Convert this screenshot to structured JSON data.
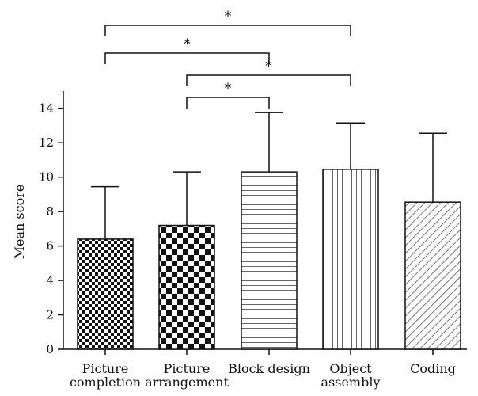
{
  "chart_data": {
    "type": "bar",
    "categories": [
      [
        "Picture",
        "completion"
      ],
      [
        "Picture",
        "arrangement"
      ],
      [
        "Block design"
      ],
      [
        "Object",
        "assembly"
      ],
      [
        "Coding"
      ]
    ],
    "values": [
      6.4,
      7.2,
      10.3,
      10.45,
      8.55
    ],
    "error_upper": [
      9.45,
      10.3,
      13.75,
      13.15,
      12.55
    ],
    "patterns": [
      "small-checker",
      "large-checker",
      "horizontal-lines",
      "vertical-lines",
      "diagonal-lines"
    ],
    "xlabel": "",
    "ylabel": "Mean score",
    "ylim": [
      0,
      15
    ],
    "yticks": [
      "0",
      "2",
      "4",
      "6",
      "8",
      "10",
      "12",
      "14"
    ],
    "grid": false,
    "significance": [
      {
        "from": 0,
        "to": 3,
        "label": "*"
      },
      {
        "from": 0,
        "to": 2,
        "label": "*"
      },
      {
        "from": 1,
        "to": 3,
        "label": "*"
      },
      {
        "from": 1,
        "to": 2,
        "label": "*"
      }
    ],
    "colors": {
      "bar_fill": "#ffffff",
      "ink": "#111111"
    }
  }
}
